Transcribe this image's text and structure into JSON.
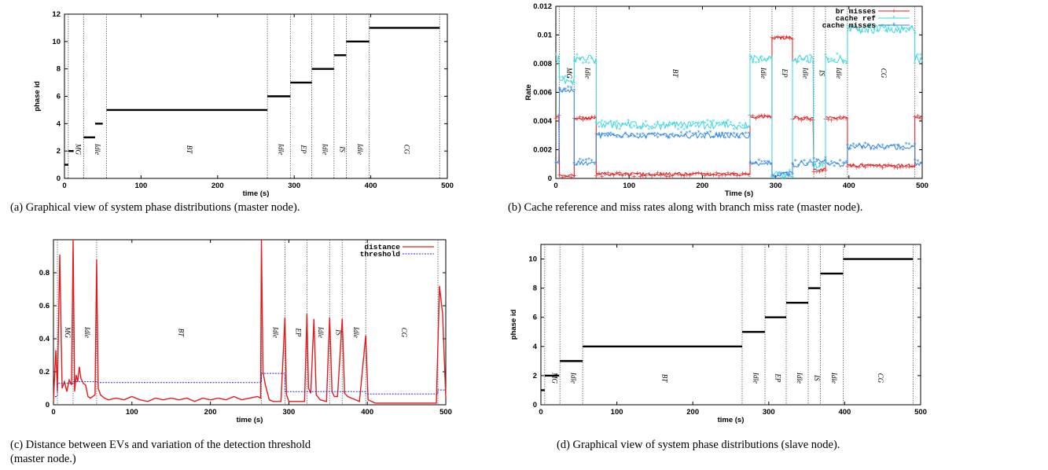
{
  "captions": [
    "(a) Graphical view of system phase distributions (master node).",
    "(b) Cache reference and miss rates along with branch miss rate (master node).",
    "(c) Distance between EVs and variation of the detection threshold",
    "(master node.)",
    "(d) Graphical view of system phase distributions (slave node)."
  ],
  "colors": {
    "red": "#e41a1c",
    "cyan": "#3ad6dc",
    "blue": "#2f86e6",
    "threshold": "#2828c8"
  },
  "chart_data": [
    {
      "type": "line",
      "xlabel": "time (s)",
      "ylabel": "phase id",
      "xlim": [
        0,
        500
      ],
      "ylim": [
        0,
        12
      ],
      "xticks": [
        "0",
        "100",
        "200",
        "300",
        "400",
        "500"
      ],
      "yticks": [
        "0",
        "2",
        "4",
        "6",
        "8",
        "10",
        "12"
      ],
      "boundaries": [
        5,
        25,
        55,
        265,
        295,
        323,
        352,
        368,
        398,
        490
      ],
      "segment_labels": [
        "MG",
        "Idle",
        "BT",
        "Idle",
        "EP",
        "Idle",
        "IS",
        "Idle",
        "CG"
      ],
      "steps": [
        [
          0,
          5,
          1
        ],
        [
          5,
          12,
          2
        ],
        [
          25,
          40,
          3
        ],
        [
          40,
          50,
          4
        ],
        [
          55,
          265,
          5
        ],
        [
          265,
          295,
          6
        ],
        [
          295,
          323,
          7
        ],
        [
          323,
          352,
          8
        ],
        [
          352,
          368,
          9
        ],
        [
          368,
          398,
          10
        ],
        [
          398,
          490,
          11
        ]
      ]
    },
    {
      "type": "line",
      "xlabel": "Time (s)",
      "ylabel": "Rate",
      "xlim": [
        0,
        500
      ],
      "ylim": [
        0,
        0.012
      ],
      "xticks": [
        "0",
        "100",
        "200",
        "300",
        "400",
        "500"
      ],
      "yticks": [
        "0",
        "0.002",
        "0.004",
        "0.006",
        "0.008",
        "0.01",
        "0.012"
      ],
      "boundaries": [
        5,
        25,
        55,
        265,
        295,
        323,
        352,
        368,
        398,
        490
      ],
      "segment_labels": [
        "MG",
        "Idle",
        "BT",
        "Idle",
        "EP",
        "Idle",
        "IS",
        "Idle",
        "CG"
      ],
      "series": [
        {
          "name": "br misses",
          "levels": [
            [
              0,
              5,
              0.0043
            ],
            [
              5,
              25,
              0.0002
            ],
            [
              25,
              55,
              0.0042
            ],
            [
              55,
              265,
              0.0003
            ],
            [
              265,
              295,
              0.0043
            ],
            [
              295,
              323,
              0.0098
            ],
            [
              323,
              352,
              0.0042
            ],
            [
              352,
              368,
              0.0006
            ],
            [
              368,
              398,
              0.0042
            ],
            [
              398,
              490,
              0.0009
            ],
            [
              490,
              500,
              0.0043
            ]
          ]
        },
        {
          "name": "cache ref",
          "levels": [
            [
              0,
              5,
              0.0083
            ],
            [
              5,
              25,
              0.0068
            ],
            [
              25,
              55,
              0.0083
            ],
            [
              55,
              265,
              0.0037
            ],
            [
              265,
              295,
              0.0083
            ],
            [
              295,
              323,
              0.0002
            ],
            [
              323,
              352,
              0.0083
            ],
            [
              352,
              368,
              0.0008
            ],
            [
              368,
              398,
              0.0083
            ],
            [
              398,
              490,
              0.0104
            ],
            [
              490,
              500,
              0.0083
            ]
          ]
        },
        {
          "name": "cache misses",
          "levels": [
            [
              0,
              5,
              0.0012
            ],
            [
              5,
              25,
              0.0062
            ],
            [
              25,
              55,
              0.0011
            ],
            [
              55,
              265,
              0.003
            ],
            [
              265,
              295,
              0.0011
            ],
            [
              295,
              323,
              0.0003
            ],
            [
              323,
              352,
              0.001
            ],
            [
              352,
              368,
              0.0012
            ],
            [
              368,
              398,
              0.001
            ],
            [
              398,
              490,
              0.0022
            ],
            [
              490,
              500,
              0.0011
            ]
          ]
        }
      ]
    },
    {
      "type": "line",
      "xlabel": "time (s)",
      "ylabel": "",
      "xlim": [
        0,
        500
      ],
      "ylim": [
        0,
        1
      ],
      "xticks": [
        "0",
        "100",
        "200",
        "300",
        "400",
        "500"
      ],
      "yticks": [
        "0",
        "0.2",
        "0.4",
        "0.6",
        "0.8"
      ],
      "boundaries": [
        5,
        25,
        55,
        265,
        295,
        323,
        352,
        368,
        398,
        490
      ],
      "segment_labels": [
        "MG",
        "Idle",
        "BT",
        "Idle",
        "EP",
        "Idle",
        "IS",
        "Idle",
        "CG"
      ],
      "series": [
        {
          "name": "distance",
          "points": [
            [
              0,
              0.02
            ],
            [
              3,
              0.33
            ],
            [
              5,
              0.08
            ],
            [
              8,
              0.91
            ],
            [
              11,
              0.1
            ],
            [
              14,
              0.14
            ],
            [
              17,
              0.08
            ],
            [
              20,
              0.15
            ],
            [
              23,
              0.12
            ],
            [
              25,
              1.0
            ],
            [
              27,
              0.08
            ],
            [
              29,
              0.18
            ],
            [
              31,
              0.14
            ],
            [
              33,
              0.23
            ],
            [
              35,
              0.16
            ],
            [
              38,
              0.13
            ],
            [
              41,
              0.12
            ],
            [
              44,
              0.05
            ],
            [
              47,
              0.04
            ],
            [
              50,
              0.05
            ],
            [
              53,
              0.06
            ],
            [
              55,
              0.88
            ],
            [
              57,
              0.1
            ],
            [
              60,
              0.06
            ],
            [
              65,
              0.04
            ],
            [
              70,
              0.03
            ],
            [
              80,
              0.04
            ],
            [
              90,
              0.03
            ],
            [
              100,
              0.05
            ],
            [
              110,
              0.03
            ],
            [
              120,
              0.02
            ],
            [
              130,
              0.04
            ],
            [
              140,
              0.03
            ],
            [
              150,
              0.04
            ],
            [
              160,
              0.03
            ],
            [
              170,
              0.04
            ],
            [
              180,
              0.02
            ],
            [
              190,
              0.04
            ],
            [
              200,
              0.03
            ],
            [
              210,
              0.04
            ],
            [
              220,
              0.03
            ],
            [
              230,
              0.05
            ],
            [
              240,
              0.03
            ],
            [
              250,
              0.04
            ],
            [
              260,
              0.05
            ],
            [
              264,
              0.04
            ],
            [
              265,
              1.0
            ],
            [
              267,
              0.2
            ],
            [
              270,
              0.12
            ],
            [
              275,
              0.03
            ],
            [
              280,
              0.02
            ],
            [
              290,
              0.02
            ],
            [
              295,
              0.53
            ],
            [
              297,
              0.06
            ],
            [
              300,
              0.02
            ],
            [
              310,
              0.02
            ],
            [
              320,
              0.02
            ],
            [
              323,
              0.55
            ],
            [
              325,
              0.1
            ],
            [
              328,
              0.07
            ],
            [
              332,
              0.52
            ],
            [
              335,
              0.06
            ],
            [
              340,
              0.03
            ],
            [
              348,
              0.02
            ],
            [
              352,
              0.53
            ],
            [
              355,
              0.08
            ],
            [
              358,
              0.05
            ],
            [
              362,
              0.05
            ],
            [
              368,
              0.52
            ],
            [
              371,
              0.07
            ],
            [
              375,
              0.05
            ],
            [
              380,
              0.04
            ],
            [
              390,
              0.02
            ],
            [
              398,
              0.42
            ],
            [
              401,
              0.03
            ],
            [
              410,
              0.01
            ],
            [
              440,
              0.01
            ],
            [
              470,
              0.01
            ],
            [
              488,
              0.01
            ],
            [
              492,
              0.72
            ],
            [
              496,
              0.55
            ],
            [
              500,
              0.04
            ]
          ]
        },
        {
          "name": "threshold",
          "steps": [
            [
              2,
              5,
              0.05
            ],
            [
              5,
              25,
              0.13
            ],
            [
              25,
              55,
              0.14
            ],
            [
              55,
              265,
              0.135
            ],
            [
              265,
              295,
              0.19
            ],
            [
              295,
              398,
              0.08
            ],
            [
              398,
              490,
              0.065
            ],
            [
              490,
              500,
              0.09
            ]
          ]
        }
      ]
    },
    {
      "type": "line",
      "xlabel": "time (s)",
      "ylabel": "phase id",
      "xlim": [
        0,
        500
      ],
      "ylim": [
        0,
        11
      ],
      "xticks": [
        "0",
        "100",
        "200",
        "300",
        "400",
        "500"
      ],
      "yticks": [
        "0",
        "2",
        "4",
        "6",
        "8",
        "10"
      ],
      "boundaries": [
        5,
        25,
        55,
        265,
        295,
        323,
        352,
        368,
        398,
        490
      ],
      "segment_labels": [
        "MG",
        "Idle",
        "BT",
        "Idle",
        "EP",
        "Idle",
        "IS",
        "Idle",
        "CG"
      ],
      "steps": [
        [
          0,
          5,
          1
        ],
        [
          5,
          24,
          2
        ],
        [
          25,
          55,
          3
        ],
        [
          55,
          265,
          4
        ],
        [
          265,
          295,
          5
        ],
        [
          295,
          323,
          6
        ],
        [
          323,
          352,
          7
        ],
        [
          352,
          368,
          8
        ],
        [
          368,
          398,
          9
        ],
        [
          398,
          490,
          10
        ]
      ]
    }
  ]
}
